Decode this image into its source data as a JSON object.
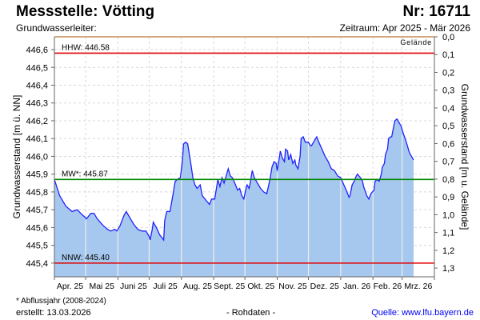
{
  "header": {
    "title": "Messstelle: Vötting",
    "number": "Nr: 16711",
    "aquifer": "Grundwasserleiter:",
    "period": "Zeitraum: Apr 2025 - Mär 2026"
  },
  "footer": {
    "note": "* Abflussjahr (2008-2024)",
    "created": "erstellt:  13.03.2026",
    "raw": "- Rohdaten -",
    "source": "Quelle: www.lfu.bayern.de"
  },
  "colors": {
    "fill": "#a6c8ee",
    "line": "#2020ff",
    "hhw": "#e00000",
    "nnw": "#e00000",
    "mw": "#008800",
    "ground": "#b87333"
  },
  "chart_data": {
    "type": "area",
    "ylabel_left": "Grundwasserstand [m ü. NN]",
    "ylabel_right": "Grundwasserstand [m u. Gelände]",
    "ground_label": "Gelände",
    "ground_level": 446.672,
    "ylim": [
      445.323,
      446.672
    ],
    "yticks_left": [
      "445,4",
      "445,5",
      "445,6",
      "445,7",
      "445,8",
      "445,9",
      "446,0",
      "446,1",
      "446,2",
      "446,3",
      "446,4",
      "446,5",
      "446,6"
    ],
    "yticks_right": [
      "0,0",
      "0,1",
      "0,2",
      "0,3",
      "0,4",
      "0,5",
      "0,6",
      "0,7",
      "0,8",
      "0,9",
      "1,0",
      "1,1",
      "1,2",
      "1,3"
    ],
    "x_unit": "days since 2025-04-01",
    "xlim": [
      0,
      365
    ],
    "month_starts": [
      0,
      30,
      61,
      91,
      122,
      153,
      183,
      214,
      244,
      275,
      306,
      334,
      365
    ],
    "month_labels": [
      "Apr. 25",
      "Mai 25",
      "Juni 25",
      "Juli 25",
      "Aug. 25",
      "Sept. 25",
      "Okt. 25",
      "Nov. 25",
      "Dez. 25",
      "Jan. 26",
      "Feb. 26",
      "Mrz. 26"
    ],
    "reference_lines": [
      {
        "name": "HHW",
        "label": "HHW: 446.58",
        "value": 446.58
      },
      {
        "name": "MW",
        "label": "MW*: 445.87",
        "value": 445.87
      },
      {
        "name": "NNW",
        "label": "NNW: 445.40",
        "value": 445.4
      }
    ],
    "series": [
      {
        "name": "Grundwasserstand",
        "x": [
          0,
          5,
          11,
          17,
          22,
          27,
          31,
          35,
          38,
          41,
          47,
          51,
          54,
          58,
          60,
          63,
          67,
          69,
          72,
          76,
          80,
          84,
          88,
          91,
          92,
          94,
          95,
          98,
          101,
          105,
          106,
          108,
          111,
          114,
          116,
          118,
          121,
          123,
          124,
          126,
          128,
          131,
          133,
          135,
          137,
          140,
          142,
          146,
          149,
          151,
          154,
          157,
          159,
          161,
          163,
          165,
          167,
          169,
          171,
          174,
          176,
          178,
          180,
          182,
          184,
          185,
          187,
          188,
          190,
          192,
          195,
          198,
          201,
          204,
          207,
          209,
          211,
          213,
          214,
          216,
          217,
          219,
          221,
          222,
          224,
          225,
          227,
          229,
          231,
          232,
          234,
          236,
          237,
          239,
          241,
          244,
          246,
          247,
          250,
          252,
          254,
          257,
          260,
          263,
          266,
          269,
          272,
          275,
          278,
          281,
          283,
          284,
          286,
          288,
          290,
          291,
          294,
          296,
          297,
          300,
          302,
          304,
          307,
          308,
          310,
          312,
          314,
          315,
          317,
          318,
          320,
          321,
          323,
          324,
          326,
          327,
          329,
          330,
          333,
          335,
          338,
          341,
          343,
          345
        ],
        "y": [
          445.87,
          445.78,
          445.72,
          445.69,
          445.7,
          445.67,
          445.65,
          445.68,
          445.68,
          445.65,
          445.61,
          445.59,
          445.58,
          445.59,
          445.58,
          445.61,
          445.67,
          445.69,
          445.66,
          445.62,
          445.59,
          445.58,
          445.58,
          445.55,
          445.53,
          445.59,
          445.63,
          445.6,
          445.56,
          445.53,
          445.64,
          445.69,
          445.69,
          445.79,
          445.86,
          445.87,
          445.88,
          445.98,
          446.07,
          446.08,
          446.07,
          445.96,
          445.88,
          445.84,
          445.82,
          445.84,
          445.78,
          445.75,
          445.73,
          445.76,
          445.76,
          445.87,
          445.83,
          445.88,
          445.85,
          445.89,
          445.93,
          445.89,
          445.88,
          445.84,
          445.81,
          445.82,
          445.78,
          445.76,
          445.82,
          445.84,
          445.82,
          445.85,
          445.92,
          445.88,
          445.85,
          445.82,
          445.8,
          445.79,
          445.87,
          445.94,
          445.97,
          445.96,
          445.92,
          445.99,
          446.03,
          445.99,
          445.97,
          446.04,
          446.03,
          445.98,
          446.01,
          445.96,
          445.98,
          445.95,
          445.93,
          446.0,
          446.1,
          446.11,
          446.08,
          446.08,
          446.06,
          446.06,
          446.09,
          446.11,
          446.08,
          446.04,
          446.0,
          445.97,
          445.93,
          445.92,
          445.89,
          445.88,
          445.84,
          445.8,
          445.77,
          445.78,
          445.84,
          445.86,
          445.89,
          445.9,
          445.88,
          445.86,
          445.83,
          445.78,
          445.76,
          445.79,
          445.81,
          445.86,
          445.87,
          445.86,
          445.9,
          445.94,
          445.96,
          446.01,
          446.04,
          446.1,
          446.11,
          446.11,
          446.17,
          446.2,
          446.21,
          446.2,
          446.17,
          446.13,
          446.08,
          446.02,
          446.0,
          445.98
        ]
      }
    ]
  }
}
